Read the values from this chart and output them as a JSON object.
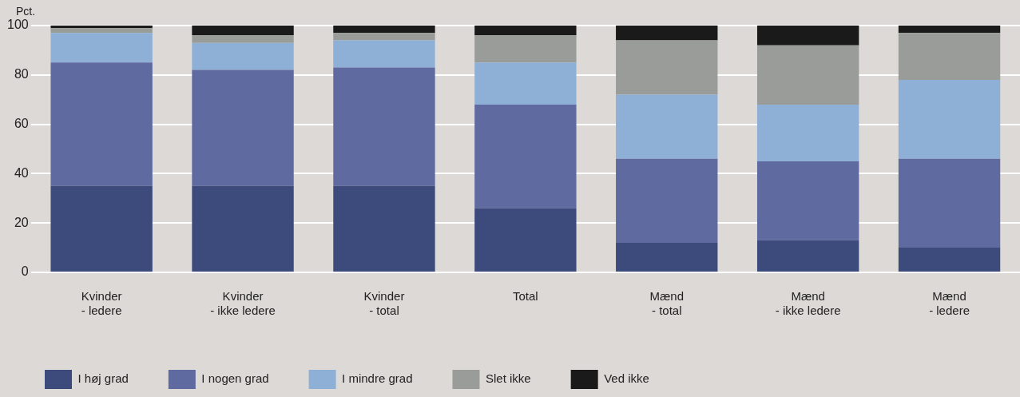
{
  "chart_data": {
    "type": "bar",
    "stacked": true,
    "ylabel": "Pct.",
    "categories": [
      "Kvinder\n- ledere",
      "Kvinder\n- ikke ledere",
      "Kvinder\n- total",
      "Total",
      "Mænd\n- total",
      "Mænd\n- ikke ledere",
      "Mænd\n- ledere"
    ],
    "series": [
      {
        "name": "I høj grad",
        "color": "#3d4a7c",
        "values": [
          35,
          35,
          35,
          26,
          12,
          13,
          10
        ]
      },
      {
        "name": "I nogen grad",
        "color": "#5f6aa0",
        "values": [
          50,
          47,
          48,
          42,
          34,
          32,
          36
        ]
      },
      {
        "name": "I mindre grad",
        "color": "#8fb0d6",
        "values": [
          12,
          11,
          11,
          17,
          26,
          23,
          32
        ]
      },
      {
        "name": "Slet ikke",
        "color": "#9a9c99",
        "values": [
          2,
          3,
          3,
          11,
          22,
          24,
          19
        ]
      },
      {
        "name": "Ved ikke",
        "color": "#1a1a1a",
        "values": [
          1,
          4,
          3,
          4,
          6,
          8,
          3
        ]
      }
    ],
    "ylim": [
      0,
      100
    ],
    "yticks": [
      0,
      20,
      40,
      60,
      80,
      100
    ],
    "grid": "y",
    "legend": "bottom left"
  }
}
